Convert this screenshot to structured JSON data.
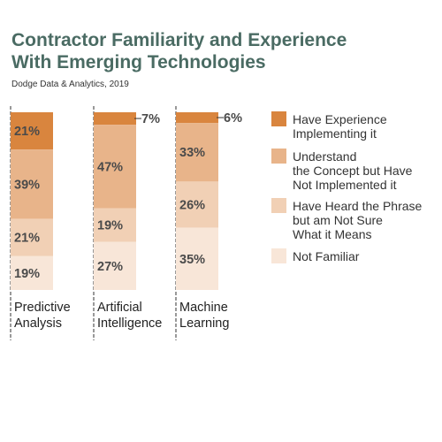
{
  "title_line1": "Contractor Familiarity and Experience",
  "title_line2": "With Emerging Technologies",
  "source": "Dodge Data & Analytics, 2019",
  "colors": {
    "title": "#4a6b63",
    "have_experience": "#d9853e",
    "understand": "#e8b48a",
    "heard": "#f1d0b5",
    "not_familiar": "#f8e6d8",
    "divider": "#333333"
  },
  "chart_data": {
    "type": "bar",
    "stacked": true,
    "categories": [
      [
        "Predictive",
        "Analysis"
      ],
      [
        "Artificial",
        "Intelligence"
      ],
      [
        "Machine",
        "Learning"
      ]
    ],
    "series": [
      {
        "name": [
          "Have Experience",
          "Implementing it"
        ],
        "values": [
          21,
          7,
          6
        ],
        "labels": [
          "21%",
          "7%",
          "6%"
        ],
        "color_key": "have_experience"
      },
      {
        "name": [
          "Understand",
          "the Concept but Have",
          "Not Implemented it"
        ],
        "values": [
          39,
          47,
          33
        ],
        "labels": [
          "39%",
          "47%",
          "33%"
        ],
        "color_key": "understand"
      },
      {
        "name": [
          "Have Heard the Phrase",
          "but am Not Sure",
          "What it Means"
        ],
        "values": [
          21,
          19,
          26
        ],
        "labels": [
          "21%",
          "19%",
          "26%"
        ],
        "color_key": "heard"
      },
      {
        "name": [
          "Not Familiar"
        ],
        "values": [
          19,
          27,
          35
        ],
        "labels": [
          "19%",
          "27%",
          "35%"
        ],
        "color_key": "not_familiar"
      }
    ],
    "ylim": [
      0,
      100
    ]
  }
}
